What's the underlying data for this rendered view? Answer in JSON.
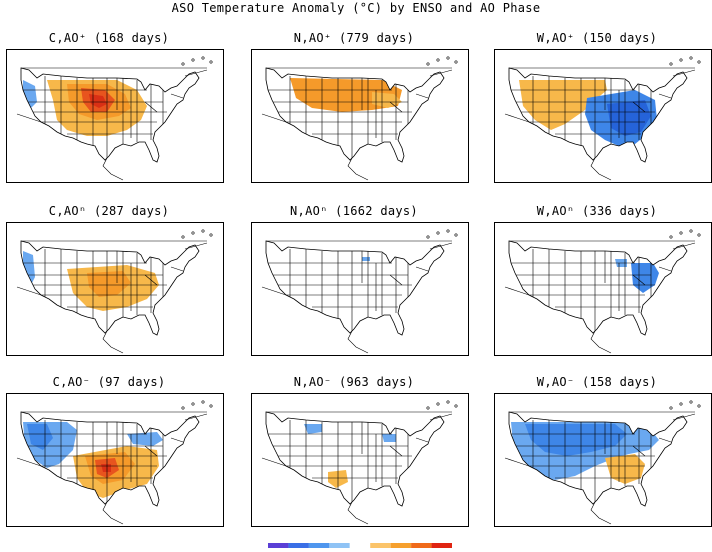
{
  "figure": {
    "title": "ASO Temperature Anomaly (°C) by ENSO and AO Phase"
  },
  "panels": [
    {
      "title": "C,AO⁺ (168 days)",
      "pattern": "warm-north-central"
    },
    {
      "title": "N,AO⁺ (779 days)",
      "pattern": "warm-north"
    },
    {
      "title": "W,AO⁺ (150 days)",
      "pattern": "warm-west-cool-east"
    },
    {
      "title": "C,AOⁿ (287 days)",
      "pattern": "warm-central"
    },
    {
      "title": "N,AOⁿ (1662 days)",
      "pattern": "neutral"
    },
    {
      "title": "W,AOⁿ (336 days)",
      "pattern": "cool-northeast"
    },
    {
      "title": "C,AO⁻ (97 days)",
      "pattern": "warm-south-central-cool-west"
    },
    {
      "title": "N,AO⁻ (963 days)",
      "pattern": "weak"
    },
    {
      "title": "W,AO⁻ (158 days)",
      "pattern": "cool-north-warm-southeast"
    }
  ],
  "colorbar": {
    "colors": [
      "#5a3fd6",
      "#3a6fe6",
      "#4f96ee",
      "#8fc3f5",
      "#ffffff",
      "#fbc46a",
      "#f6a02e",
      "#f06a1a",
      "#e02412"
    ]
  },
  "colors": {
    "warm_light": "#f7b84a",
    "warm_mid": "#f59a2a",
    "warm_strong": "#e8541e",
    "warm_max": "#d93015",
    "cool_light": "#6aa8f0",
    "cool_mid": "#3e86e8",
    "cool_strong": "#2563d9"
  }
}
